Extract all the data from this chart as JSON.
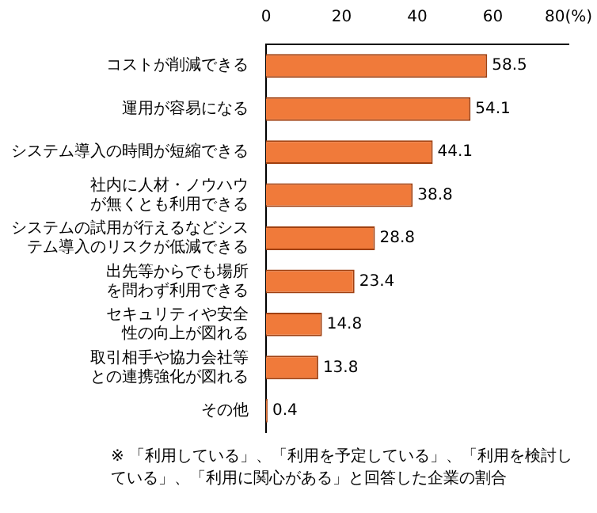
{
  "chart_data": {
    "type": "bar",
    "orientation": "horizontal",
    "categories": [
      "コストが削減できる",
      "運用が容易になる",
      "システム導入の時間が短縮できる",
      "社内に人材・ノウハウが無くとも利用できる",
      "システムの試用が行えるなどシステム導入のリスクが低減できる",
      "出先等からでも場所を問わず利用できる",
      "セキュリティや安全性の向上が図れる",
      "取引相手や協力会社等との連携強化が図れる",
      "その他"
    ],
    "values": [
      58.5,
      54.1,
      44.1,
      38.8,
      28.8,
      23.4,
      14.8,
      13.8,
      0.4
    ],
    "color": "#f07a3a",
    "xlim": [
      0,
      80
    ],
    "xticks": [
      0,
      20,
      40,
      60,
      {
        "value": 80,
        "label": "80(%)"
      }
    ],
    "data_labels": true,
    "grid": false,
    "legend": false,
    "annotations": [
      "※ 「利用している」、「利用を予定している」、「利用を検討している」、「利用に関心がある」と回答した企業の割合"
    ]
  }
}
